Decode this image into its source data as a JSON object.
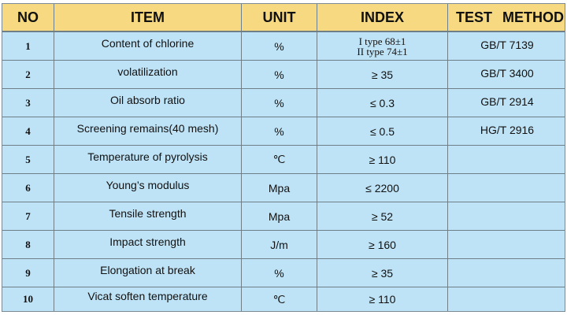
{
  "headers": {
    "no": "NO",
    "item": "ITEM",
    "unit": "UNIT",
    "index": "INDEX",
    "test_method": "TEST  METHOD"
  },
  "rows": [
    {
      "no": "1",
      "item": "Content of chlorine",
      "unit": "%",
      "index_line1": "I type 68±1",
      "index_line2": "II type 74±1",
      "test": "GB/T 7139"
    },
    {
      "no": "2",
      "item": "volatilization",
      "unit": "%",
      "index": "≥ 35",
      "test": "GB/T 3400"
    },
    {
      "no": "3",
      "item": "Oil absorb ratio",
      "unit": "%",
      "index": "≤ 0.3",
      "test": "GB/T 2914"
    },
    {
      "no": "4",
      "item": "Screening remains(40 mesh)",
      "unit": "%",
      "index": "≤ 0.5",
      "test": "HG/T 2916"
    },
    {
      "no": "5",
      "item": "Temperature of pyrolysis",
      "unit": "℃",
      "index": "≥ 110",
      "test": ""
    },
    {
      "no": "6",
      "item": "Young’s modulus",
      "unit": "Mpa",
      "index": "≤ 2200",
      "test": ""
    },
    {
      "no": "7",
      "item": "Tensile strength",
      "unit": "Mpa",
      "index": "≥ 52",
      "test": ""
    },
    {
      "no": "8",
      "item": "Impact strength",
      "unit": "J/m",
      "index": "≥ 160",
      "test": ""
    },
    {
      "no": "9",
      "item": "Elongation at break",
      "unit": "%",
      "index": "≥ 35",
      "test": ""
    },
    {
      "no": "10",
      "item": "Vicat soften temperature",
      "unit": "℃",
      "index": "≥ 110",
      "test": ""
    }
  ],
  "colors": {
    "header_bg": "#f6d980",
    "body_bg": "#bfe3f6",
    "grid": "#6f7f88"
  }
}
